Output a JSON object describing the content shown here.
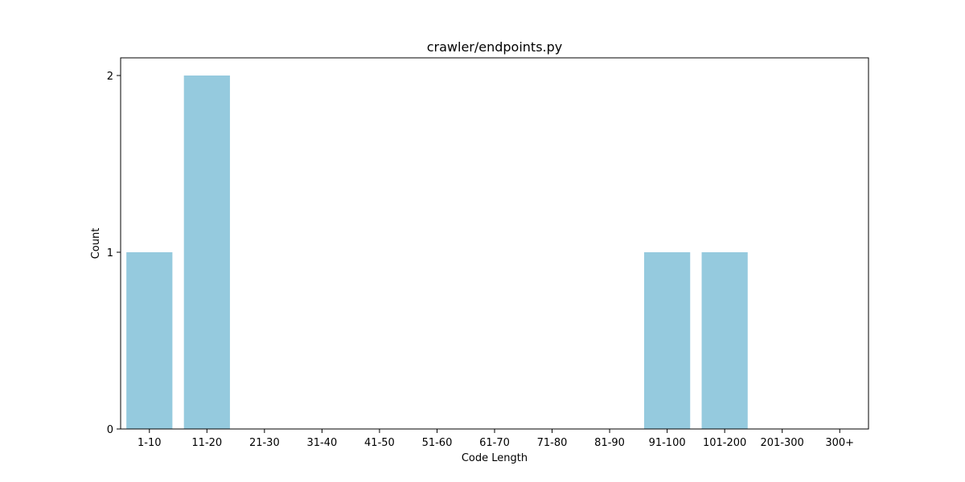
{
  "chart_data": {
    "type": "bar",
    "title": "crawler/endpoints.py",
    "xlabel": "Code Length",
    "ylabel": "Count",
    "categories": [
      "1-10",
      "11-20",
      "21-30",
      "31-40",
      "41-50",
      "51-60",
      "61-70",
      "71-80",
      "81-90",
      "91-100",
      "101-200",
      "201-300",
      "300+"
    ],
    "values": [
      1,
      2,
      0,
      0,
      0,
      0,
      0,
      0,
      0,
      1,
      1,
      0,
      0
    ],
    "ylim": [
      0,
      2.1
    ],
    "yticks": [
      0,
      1,
      2
    ],
    "grid": false,
    "bar_color": "#95cade"
  }
}
